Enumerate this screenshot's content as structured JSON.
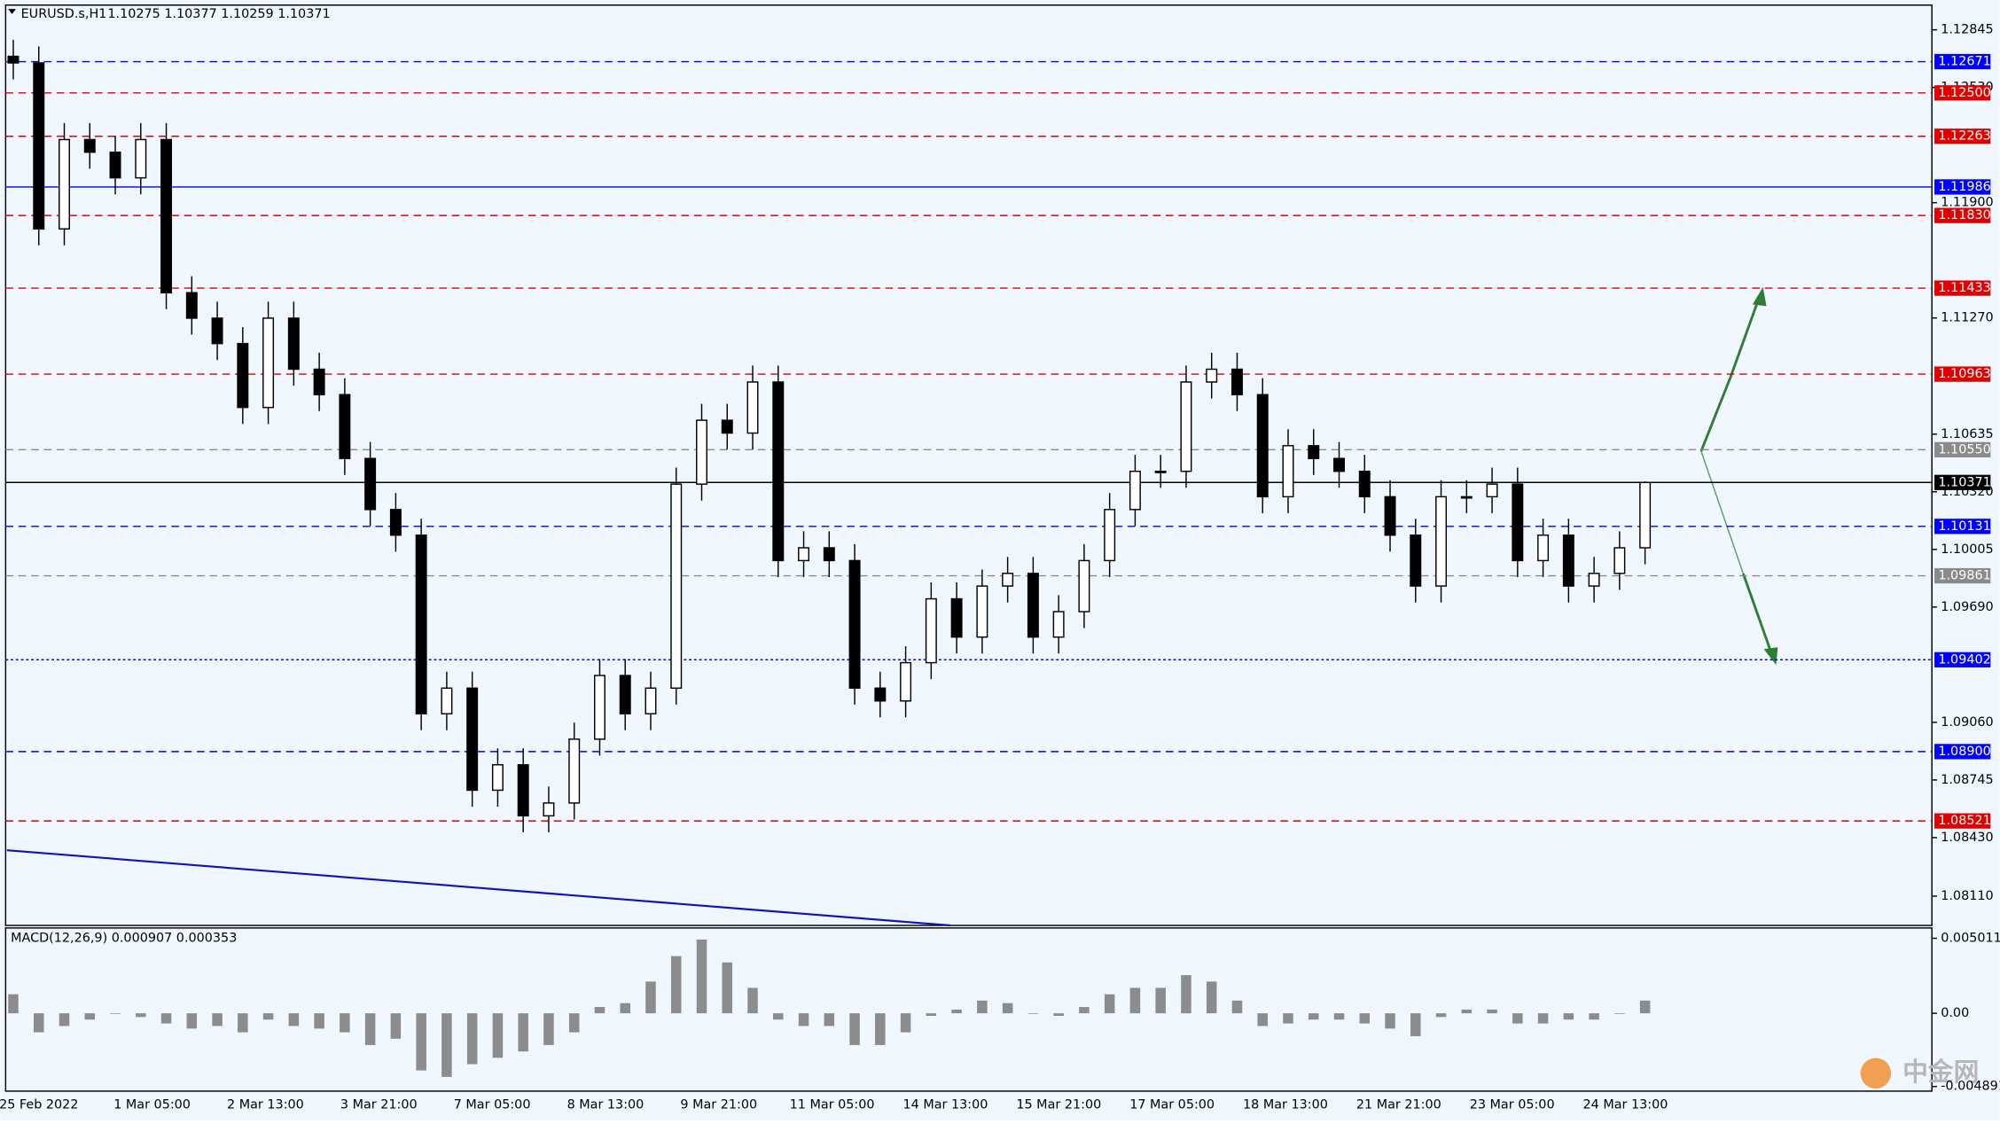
{
  "chart_data": {
    "type": "candlestick",
    "symbol": "EURUSD.s,H1",
    "quote": "1.10275 1.10377 1.10259 1.10371",
    "ylim": [
      1.0795,
      1.1298
    ],
    "yticks": [
      1.12845,
      {
        "value": 1.1253,
        "label": "1.12530"
      },
      {
        "value": 1.119,
        "label": "1.11900"
      },
      {
        "value": 1.1127,
        "label": "1.11270"
      },
      1.10635,
      {
        "value": 1.1032,
        "label": "1.10320"
      },
      1.10005,
      {
        "value": 1.0969,
        "label": "1.09690"
      },
      {
        "value": 1.0906,
        "label": "1.09060"
      },
      1.08745,
      {
        "value": 1.0843,
        "label": "1.08430"
      },
      {
        "value": 1.0811,
        "label": "1.08110"
      }
    ],
    "levels": [
      {
        "value": 1.12671,
        "color": "#0000ff",
        "style": "dash"
      },
      {
        "value": 1.125,
        "label": "1.12500",
        "color": "#e00000",
        "style": "dash"
      },
      {
        "value": 1.12263,
        "color": "#e00000",
        "style": "dash"
      },
      {
        "value": 1.11986,
        "color": "#0000ff",
        "style": "solid"
      },
      {
        "value": 1.1183,
        "label": "1.11830",
        "color": "#e00000",
        "style": "dash"
      },
      {
        "value": 1.11433,
        "color": "#e00000",
        "style": "dash"
      },
      {
        "value": 1.10963,
        "color": "#e00000",
        "style": "dash"
      },
      {
        "value": 1.1055,
        "label": "1.10550",
        "color": "#8a8a8a",
        "style": "dash"
      },
      {
        "value": 1.10371,
        "color": "#000000",
        "style": "solid"
      },
      {
        "value": 1.10131,
        "color": "#0000ff",
        "style": "dash"
      },
      {
        "value": 1.09861,
        "color": "#8a8a8a",
        "style": "dash"
      },
      {
        "value": 1.09402,
        "color": "#0000ff",
        "style": "dot"
      },
      {
        "value": 1.089,
        "label": "1.08900",
        "color": "#0000ff",
        "style": "dash"
      },
      {
        "value": 1.08521,
        "color": "#e00000",
        "style": "dash"
      }
    ],
    "time_labels": [
      "25 Feb 2022",
      "1 Mar 05:00",
      "2 Mar 13:00",
      "3 Mar 21:00",
      "7 Mar 05:00",
      "8 Mar 13:00",
      "9 Mar 21:00",
      "11 Mar 05:00",
      "14 Mar 13:00",
      "15 Mar 21:00",
      "17 Mar 05:00",
      "18 Mar 13:00",
      "21 Mar 21:00",
      "23 Mar 05:00",
      "24 Mar 13:00"
    ],
    "candles": [
      [
        1.127,
        1.1279,
        1.12574,
        1.12664
      ],
      [
        1.12664,
        1.12754,
        1.11667,
        1.11757
      ],
      [
        1.11757,
        1.12335,
        1.11667,
        1.12245
      ],
      [
        1.12245,
        1.12335,
        1.12086,
        1.12176
      ],
      [
        1.12176,
        1.12266,
        1.11946,
        1.12036
      ],
      [
        1.12036,
        1.12335,
        1.11946,
        1.12245
      ],
      [
        1.12245,
        1.12335,
        1.11318,
        1.11408
      ],
      [
        1.11408,
        1.11498,
        1.11179,
        1.11269
      ],
      [
        1.11269,
        1.11359,
        1.1104,
        1.1113
      ],
      [
        1.1113,
        1.1122,
        1.10691,
        1.10781
      ],
      [
        1.10781,
        1.11359,
        1.10691,
        1.11269
      ],
      [
        1.11269,
        1.11359,
        1.109,
        1.1099
      ],
      [
        1.1099,
        1.1108,
        1.10761,
        1.10851
      ],
      [
        1.10851,
        1.10941,
        1.10412,
        1.10502
      ],
      [
        1.10502,
        1.10592,
        1.10133,
        1.10223
      ],
      [
        1.10223,
        1.10313,
        1.09993,
        1.10083
      ],
      [
        1.10083,
        1.10173,
        1.09017,
        1.09107
      ],
      [
        1.09107,
        1.09337,
        1.09017,
        1.09247
      ],
      [
        1.09247,
        1.09337,
        1.08599,
        1.08689
      ],
      [
        1.08689,
        1.08918,
        1.08599,
        1.08828
      ],
      [
        1.08828,
        1.08918,
        1.08459,
        1.08549
      ],
      [
        1.08549,
        1.08709,
        1.08459,
        1.08619
      ],
      [
        1.08619,
        1.09058,
        1.08529,
        1.08968
      ],
      [
        1.08968,
        1.09406,
        1.08878,
        1.09316
      ],
      [
        1.09316,
        1.09406,
        1.09017,
        1.09107
      ],
      [
        1.09107,
        1.09337,
        1.09017,
        1.09247
      ],
      [
        1.09247,
        1.10452,
        1.09157,
        1.10362
      ],
      [
        1.10362,
        1.10801,
        1.10272,
        1.10711
      ],
      [
        1.10711,
        1.10801,
        1.10551,
        1.10641
      ],
      [
        1.10641,
        1.1101,
        1.10551,
        1.1092
      ],
      [
        1.1092,
        1.1101,
        1.09854,
        1.09944
      ],
      [
        1.09944,
        1.10104,
        1.09854,
        1.10014
      ],
      [
        1.10014,
        1.10104,
        1.09854,
        1.09944
      ],
      [
        1.09944,
        1.10034,
        1.09157,
        1.09247
      ],
      [
        1.09247,
        1.09337,
        1.09087,
        1.09177
      ],
      [
        1.09177,
        1.09476,
        1.09087,
        1.09386
      ],
      [
        1.09386,
        1.09825,
        1.09296,
        1.09735
      ],
      [
        1.09735,
        1.09825,
        1.09436,
        1.09526
      ],
      [
        1.09526,
        1.09895,
        1.09436,
        1.09805
      ],
      [
        1.09805,
        1.09964,
        1.09715,
        1.09874
      ],
      [
        1.09874,
        1.09964,
        1.09436,
        1.09526
      ],
      [
        1.09526,
        1.09755,
        1.09436,
        1.09665
      ],
      [
        1.09665,
        1.10034,
        1.09575,
        1.09944
      ],
      [
        1.09944,
        1.10313,
        1.09854,
        1.10223
      ],
      [
        1.10223,
        1.10522,
        1.10133,
        1.10432
      ],
      [
        1.10432,
        1.10522,
        1.10342,
        1.10432
      ],
      [
        1.10432,
        1.1101,
        1.10342,
        1.1092
      ],
      [
        1.1092,
        1.1108,
        1.1083,
        1.1099
      ],
      [
        1.1099,
        1.1108,
        1.10761,
        1.10851
      ],
      [
        1.10851,
        1.10941,
        1.10203,
        1.10293
      ],
      [
        1.10293,
        1.10662,
        1.10203,
        1.10572
      ],
      [
        1.10572,
        1.10662,
        1.10412,
        1.10502
      ],
      [
        1.10502,
        1.10592,
        1.10342,
        1.10432
      ],
      [
        1.10432,
        1.10522,
        1.10203,
        1.10293
      ],
      [
        1.10293,
        1.10383,
        1.09993,
        1.10083
      ],
      [
        1.10083,
        1.10173,
        1.09715,
        1.09805
      ],
      [
        1.09805,
        1.10383,
        1.09715,
        1.10293
      ],
      [
        1.10293,
        1.10383,
        1.10203,
        1.10293
      ],
      [
        1.10293,
        1.10452,
        1.10203,
        1.10362
      ],
      [
        1.10362,
        1.10452,
        1.09854,
        1.09944
      ],
      [
        1.09944,
        1.10173,
        1.09854,
        1.10083
      ],
      [
        1.10083,
        1.10173,
        1.09715,
        1.09805
      ],
      [
        1.09805,
        1.09964,
        1.09715,
        1.09874
      ],
      [
        1.09874,
        1.10104,
        1.09784,
        1.10014
      ],
      [
        1.10014,
        1.10377,
        1.09924,
        1.10371
      ]
    ],
    "macd": {
      "label": "MACD(12,26,9) 0.000907 0.000353",
      "ylim": [
        -0.0052,
        0.0057
      ],
      "yticks": [
        0.005011,
        {
          "value": 0,
          "label": "0.00"
        },
        -0.004891
      ],
      "values": [
        0.00127,
        -0.00127,
        -0.00085,
        -0.00042,
        0,
        -0.00025,
        -0.00068,
        -0.00102,
        -0.00085,
        -0.00127,
        -0.00042,
        -0.00085,
        -0.00102,
        -0.00127,
        -0.00212,
        -0.0017,
        -0.00382,
        -0.00425,
        -0.0034,
        -0.00297,
        -0.00255,
        -0.00212,
        -0.00127,
        0.00042,
        0.00068,
        0.00212,
        0.00382,
        0.00493,
        0.0034,
        0.0017,
        -0.00042,
        -0.00085,
        -0.00085,
        -0.00212,
        -0.00212,
        -0.00127,
        -0.00017,
        0.00025,
        0.00085,
        0.00068,
        0,
        -0.00017,
        0.00042,
        0.00127,
        0.0017,
        0.0017,
        0.00255,
        0.00212,
        0.00085,
        -0.00085,
        -0.00068,
        -0.00042,
        -0.00042,
        -0.00068,
        -0.00102,
        -0.00153,
        -0.00025,
        0.00025,
        0.00025,
        -0.00068,
        -0.00068,
        -0.00042,
        -0.00042,
        0,
        0.00085
      ]
    },
    "watermark": "中金网"
  }
}
